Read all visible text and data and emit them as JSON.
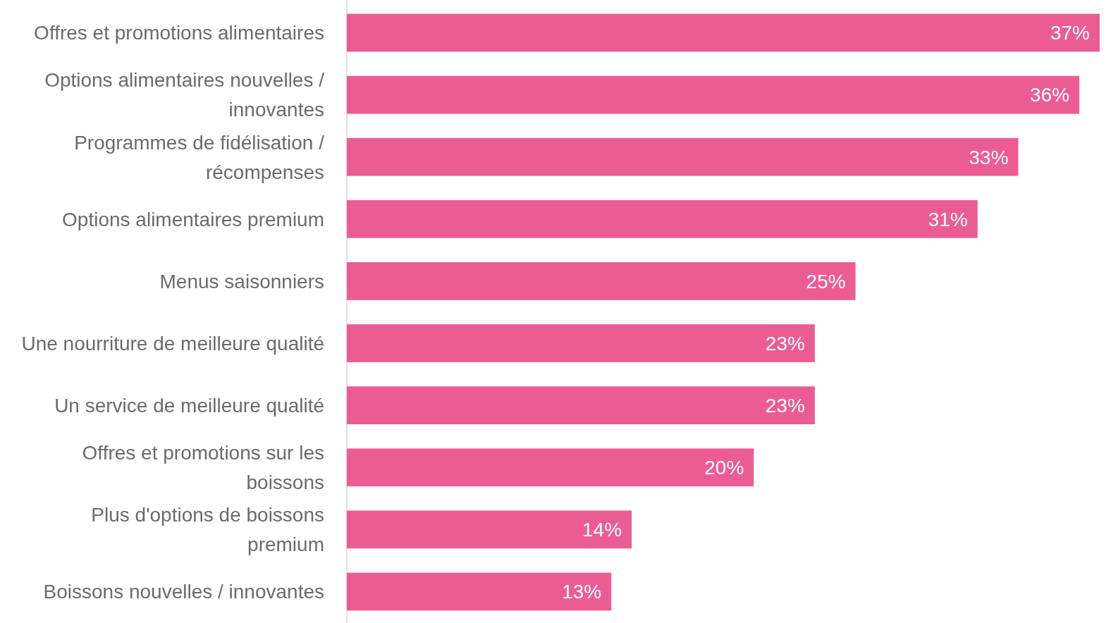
{
  "chart_data": {
    "type": "bar",
    "orientation": "horizontal",
    "categories": [
      "Offres et promotions alimentaires",
      "Options alimentaires nouvelles / innovantes",
      "Programmes de fidélisation / récompenses",
      "Options alimentaires premium",
      "Menus saisonniers",
      "Une nourriture de meilleure qualité",
      "Un service de meilleure qualité",
      "Offres et promotions sur les boissons",
      "Plus d'options de boissons premium",
      "Boissons nouvelles / innovantes"
    ],
    "values": [
      37,
      36,
      33,
      31,
      25,
      23,
      23,
      20,
      14,
      13
    ],
    "value_labels": [
      "37%",
      "36%",
      "33%",
      "31%",
      "25%",
      "23%",
      "23%",
      "20%",
      "14%",
      "13%"
    ],
    "color": "#ec5c94"
  }
}
